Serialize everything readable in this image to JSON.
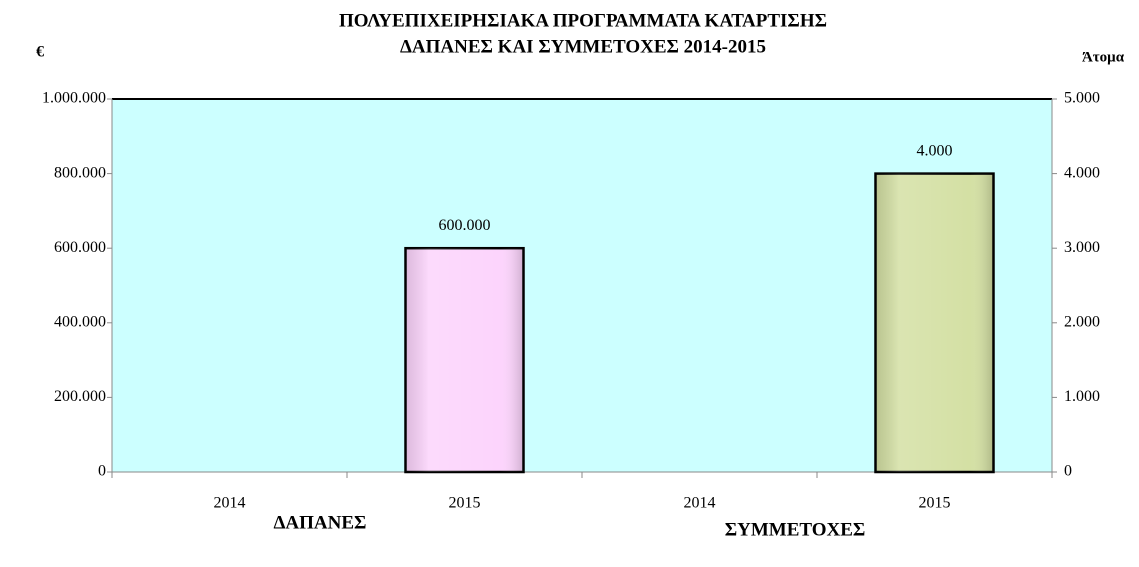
{
  "chart_data": {
    "type": "bar",
    "title": [
      "ΠΟΛΥΕΠΙΧΕΙΡΗΣΙΑΚΑ ΠΡΟΓΡΑΜΜΑΤΑ ΚΑΤΑΡΤΙΣΗΣ",
      "ΔΑΠΑΝΕΣ ΚΑΙ ΣΥΜΜΕΤΟΧΕΣ 2014-2015"
    ],
    "ylabel": "€",
    "y2label": "Άτομα",
    "categories": [
      "2014",
      "2015",
      "2014",
      "2015"
    ],
    "series": [
      {
        "name": "ΔΑΠΑΝΕΣ",
        "color": "#fcd4fc",
        "values": [
          null,
          600000,
          null,
          null
        ],
        "value_labels": [
          null,
          "600.000",
          null,
          null
        ]
      },
      {
        "name": "ΣΥΜΜΕΤΟΧΕΣ",
        "color": "#d4e0a4",
        "axis": "y2",
        "values": [
          null,
          null,
          null,
          4000
        ],
        "value_labels": [
          null,
          null,
          null,
          "4.000"
        ]
      }
    ],
    "ylim": [
      0,
      1000000
    ],
    "yticks": [
      0,
      {
        "value": 200000,
        "label": "200.000"
      },
      {
        "value": 400000,
        "label": "400.000"
      },
      {
        "value": 600000,
        "label": "600.000"
      },
      {
        "value": 800000,
        "label": "800.000"
      },
      {
        "value": 1000000,
        "label": "1.000.000"
      }
    ],
    "y2lim": [
      0,
      5000
    ],
    "y2ticks": [
      0,
      {
        "value": 1000,
        "label": "1.000"
      },
      {
        "value": 2000,
        "label": "2.000"
      },
      {
        "value": 3000,
        "label": "3.000"
      },
      {
        "value": 4000,
        "label": "4.000"
      },
      {
        "value": 5000,
        "label": "5.000"
      }
    ],
    "background": "#ccffff"
  }
}
